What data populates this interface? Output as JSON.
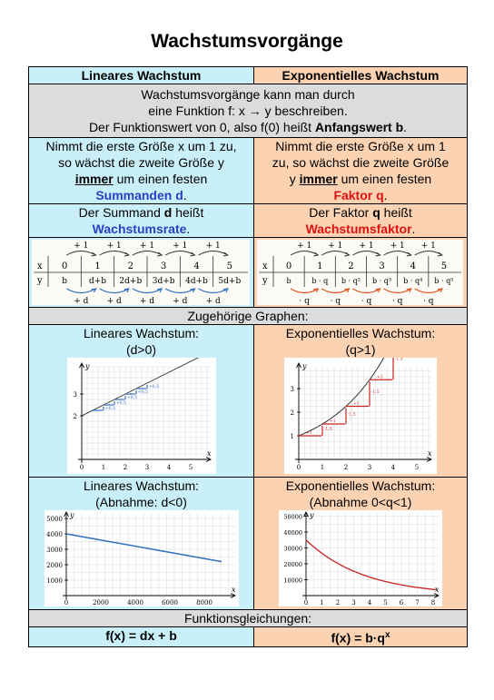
{
  "title": "Wachstumsvorgänge",
  "header": {
    "linear": "Lineares Wachstum",
    "exponential": "Exponentielles Wachstum"
  },
  "intro": {
    "line1": "Wachstumsvorgänge kann man durch",
    "line2": "eine Funktion f: x → y beschreiben.",
    "line3_pre": "Der Funktionswert von 0, also f(0) heißt ",
    "line3_bold": "Anfangswert b",
    "line3_post": "."
  },
  "linear_desc": {
    "l1": "Nimmt die erste Größe x um 1 zu,",
    "l2": "so wächst die zweite Größe y",
    "l3_u": "immer",
    "l3_rest": " um einen festen",
    "l4_hl": "Summanden d",
    "l4_post": "."
  },
  "exp_desc": {
    "l1": "Nimmt die erste Größe x um 1",
    "l2": "zu, so wächst die zweite Größe",
    "l3_pre": "y ",
    "l3_u": "immer",
    "l3_rest": " um einen festen",
    "l4_hl": "Faktor q",
    "l4_post": "."
  },
  "linear_rate": {
    "pre": "Der Summand ",
    "sym": "d",
    "post": " heißt",
    "hl": "Wachstumsrate",
    "end": "."
  },
  "exp_rate": {
    "pre": "Der Faktor ",
    "sym": "q",
    "post": " heißt",
    "hl": "Wachstumsfaktor",
    "end": "."
  },
  "linear_table": {
    "top": [
      "+ 1",
      "+ 1",
      "+ 1",
      "+ 1",
      "+ 1"
    ],
    "x_label": "x",
    "x": [
      "0",
      "1",
      "2",
      "3",
      "4",
      "5"
    ],
    "y_label": "y",
    "y": [
      "b",
      "d+b",
      "2d+b",
      "3d+b",
      "4d+b",
      "5d+b"
    ],
    "bottom": [
      "+ d",
      "+ d",
      "+ d",
      "+ d",
      "+ d"
    ]
  },
  "exp_table": {
    "top": [
      "+ 1",
      "+ 1",
      "+ 1",
      "+ 1",
      "+ 1"
    ],
    "x_label": "x",
    "x": [
      "0",
      "1",
      "2",
      "3",
      "4",
      "5"
    ],
    "y_label": "y",
    "y": [
      "b",
      "b · q",
      "b · q²",
      "b · q³",
      "b · q⁴",
      "b · q⁵"
    ],
    "bottom": [
      "· q",
      "· q",
      "· q",
      "· q",
      "· q"
    ]
  },
  "graphs_header": "Zugehörige Graphen:",
  "growth": {
    "linear_title": "Lineares Wachstum:",
    "linear_cond": "(d>0)",
    "exp_title": "Exponentielles Wachstum:",
    "exp_cond": "(q>1)"
  },
  "decay": {
    "linear_title": "Lineares Wachstum:",
    "linear_cond": "(Abnahme: d<0)",
    "exp_title": "Exponentielles Wachstum:",
    "exp_cond": "(Abnahme 0<q<1)"
  },
  "formulas_header": "Funktionsgleichungen:",
  "formula_linear": "f(x) = dx + b",
  "formula_exp_base": "f(x) = b·q",
  "formula_exp_sup": "x",
  "graph_growth_linear": {
    "x_ticks": [
      "0",
      "1",
      "2",
      "3",
      "4",
      "5"
    ],
    "y_ticks": [
      "2",
      "3"
    ],
    "axis_x": "x",
    "axis_y": "y",
    "step_labels": [
      "+1",
      "+0,5",
      "+1",
      "+0,5",
      "+1",
      "+0,5",
      "+1",
      "+0,5",
      "+1",
      "+0,5"
    ]
  },
  "graph_growth_exp": {
    "x_ticks": [
      "0",
      "1",
      "2",
      "3",
      "4",
      "5"
    ],
    "y_ticks": [
      "1",
      "2",
      "3"
    ],
    "axis_x": "x",
    "axis_y": "y",
    "step_labels": [
      "+1",
      "·1,5",
      "+1",
      "·1,5",
      "+1",
      "·1,5",
      "+1",
      "·1,5"
    ]
  },
  "graph_decay_linear": {
    "x_ticks": [
      "0",
      "2000",
      "4000",
      "6000",
      "8000"
    ],
    "y_ticks": [
      "1000",
      "2000",
      "3000",
      "4000",
      "5000"
    ],
    "axis_x": "x",
    "axis_y": "y",
    "line": {
      "from": [
        0,
        4000
      ],
      "to": [
        9000,
        2200
      ]
    }
  },
  "graph_decay_exp": {
    "x_ticks": [
      "0",
      "1",
      "2",
      "3",
      "4",
      "5",
      "6",
      "7",
      "8"
    ],
    "y_ticks": [
      "10000",
      "20000",
      "30000",
      "40000",
      "50000"
    ],
    "axis_x": "x",
    "axis_y": "y",
    "curve": {
      "b": 35000,
      "q": 0.76
    }
  },
  "colors": {
    "linear_bg": "#c9f0f8",
    "exp_bg": "#fbd3b2",
    "shared_bg": "#dcdcdc",
    "linear_accent": "#2a3fc7",
    "exp_accent": "#e01010",
    "graph_blue": "#2f6fc0",
    "graph_red": "#cc2222"
  }
}
